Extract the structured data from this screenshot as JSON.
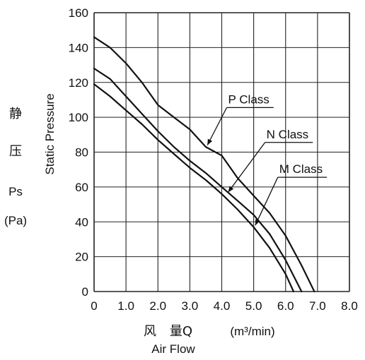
{
  "chart_data": {
    "type": "line",
    "ylabel": "Static Pressure",
    "ylabel_cn": [
      "静",
      "压"
    ],
    "ylabel_symbol": "Ps",
    "ylabel_unit": "(Pa)",
    "xlabel_cn_1": "风",
    "xlabel_cn_2": "量Q",
    "xlabel_unit": "(m³/min)",
    "xlabel": "Air Flow",
    "xlim": [
      0,
      8
    ],
    "ylim": [
      0,
      160
    ],
    "x_ticks": [
      "0",
      "1.0",
      "2.0",
      "3.0",
      "4.0",
      "5.0",
      "6.0",
      "7.0",
      "8.0"
    ],
    "y_ticks": [
      "0",
      "20",
      "40",
      "60",
      "80",
      "100",
      "120",
      "140",
      "160"
    ],
    "grid": true,
    "series": [
      {
        "name": "P Class",
        "points": [
          [
            0,
            146
          ],
          [
            0.5,
            140
          ],
          [
            1.0,
            131
          ],
          [
            1.5,
            120
          ],
          [
            2.0,
            107
          ],
          [
            2.5,
            100
          ],
          [
            3.0,
            93
          ],
          [
            3.5,
            83
          ],
          [
            4.0,
            78
          ],
          [
            4.5,
            65
          ],
          [
            5.0,
            55
          ],
          [
            5.5,
            45
          ],
          [
            6.0,
            32
          ],
          [
            6.5,
            15
          ],
          [
            6.9,
            0
          ]
        ]
      },
      {
        "name": "N Class",
        "points": [
          [
            0,
            128
          ],
          [
            0.5,
            122
          ],
          [
            1.0,
            112
          ],
          [
            1.5,
            102
          ],
          [
            2.0,
            92
          ],
          [
            2.5,
            83
          ],
          [
            3.0,
            75
          ],
          [
            3.5,
            68
          ],
          [
            4.0,
            60
          ],
          [
            4.5,
            52
          ],
          [
            5.0,
            44
          ],
          [
            5.5,
            33
          ],
          [
            6.0,
            18
          ],
          [
            6.5,
            0
          ]
        ]
      },
      {
        "name": "M Class",
        "points": [
          [
            0,
            119
          ],
          [
            0.5,
            112
          ],
          [
            1.0,
            104
          ],
          [
            1.5,
            96
          ],
          [
            2.0,
            87
          ],
          [
            2.5,
            79
          ],
          [
            3.0,
            71
          ],
          [
            3.5,
            64
          ],
          [
            4.0,
            56
          ],
          [
            4.5,
            47
          ],
          [
            5.0,
            37
          ],
          [
            5.5,
            25
          ],
          [
            6.0,
            10
          ],
          [
            6.25,
            0
          ]
        ]
      }
    ],
    "annotations": [
      {
        "text": "P Class",
        "x": 4.2,
        "y": 108,
        "arrow_to": [
          3.55,
          84
        ]
      },
      {
        "text": "N Class",
        "x": 5.4,
        "y": 88,
        "arrow_to": [
          4.2,
          57
        ]
      },
      {
        "text": "M Class",
        "x": 5.8,
        "y": 68,
        "arrow_to": [
          5.05,
          38
        ]
      }
    ]
  }
}
